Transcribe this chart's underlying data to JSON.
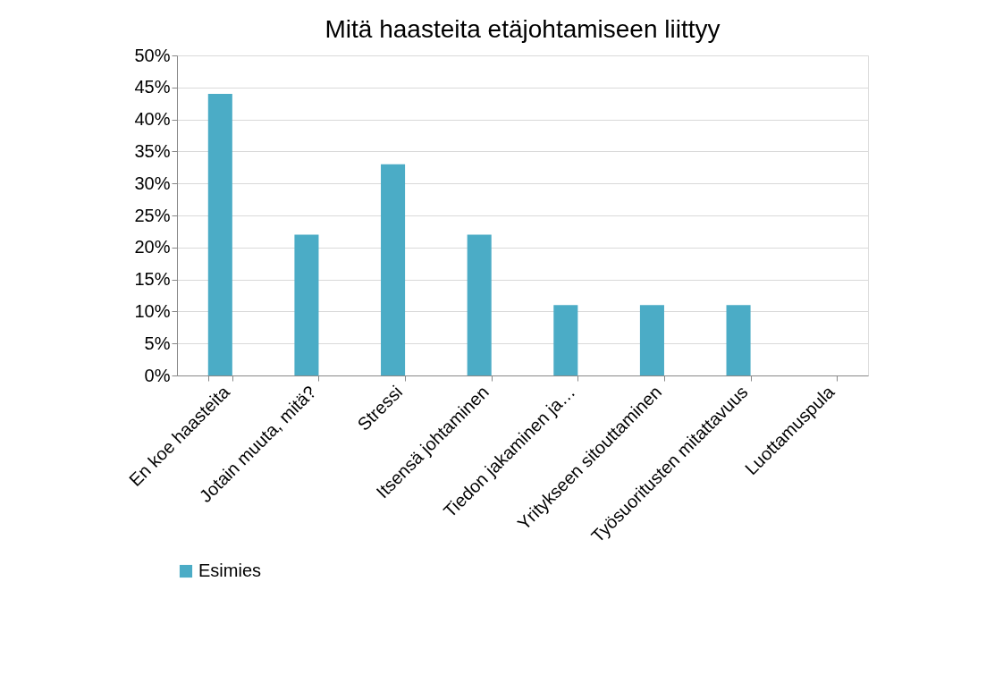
{
  "chart_data": {
    "type": "bar",
    "title": "Mitä haasteita etäjohtamiseen liittyy",
    "categories": [
      "En koe haasteita",
      "Jotain muuta, mitä?",
      "Stressi",
      "Itsensä johtaminen",
      "Tiedon jakaminen ja…",
      "Yritykseen sitouttaminen",
      "Työsuoritusten mitattavuus",
      "Luottamuspula"
    ],
    "series": [
      {
        "name": "Esimies",
        "color": "#4bacc6",
        "values": [
          0.44,
          0.22,
          0.33,
          0.22,
          0.11,
          0.11,
          0.11,
          0
        ]
      }
    ],
    "ylim": [
      0,
      0.5
    ],
    "yticks": [
      {
        "value": 0,
        "label": "0%"
      },
      {
        "value": 0.05,
        "label": "5%"
      },
      {
        "value": 0.1,
        "label": "10%"
      },
      {
        "value": 0.15,
        "label": "15%"
      },
      {
        "value": 0.2,
        "label": "20%"
      },
      {
        "value": 0.25,
        "label": "25%"
      },
      {
        "value": 0.3,
        "label": "30%"
      },
      {
        "value": 0.35,
        "label": "35%"
      },
      {
        "value": 0.4,
        "label": "40%"
      },
      {
        "value": 0.45,
        "label": "45%"
      },
      {
        "value": 0.5,
        "label": "50%"
      }
    ],
    "grid": "y",
    "legend": "bottom"
  }
}
